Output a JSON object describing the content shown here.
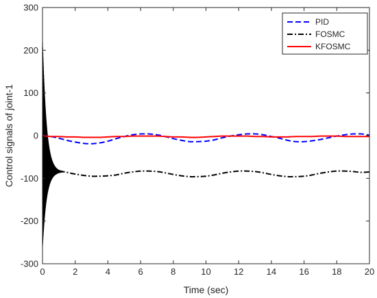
{
  "chart_data": {
    "type": "line",
    "title": "",
    "xlabel": "Time (sec)",
    "ylabel": "Control signals of joint-1",
    "xlim": [
      0,
      20
    ],
    "ylim": [
      -300,
      300
    ],
    "xticks": [
      "0",
      "2",
      "4",
      "6",
      "8",
      "10",
      "12",
      "14",
      "16",
      "18",
      "20"
    ],
    "yticks": [
      "300",
      "200",
      "100",
      "0",
      "-100",
      "-200",
      "-300"
    ],
    "grid": false,
    "legend_position": "top-right",
    "series": [
      {
        "name": "PID",
        "color": "#0000ff",
        "line_style": "dashed",
        "x": [
          0,
          0.5,
          1,
          1.5,
          2,
          2.5,
          3,
          3.5,
          4,
          4.5,
          5,
          5.5,
          6,
          6.5,
          7,
          7.5,
          8,
          8.5,
          9,
          9.5,
          10,
          10.5,
          11,
          11.5,
          12,
          12.5,
          13,
          13.5,
          14,
          14.5,
          15,
          15.5,
          16,
          16.5,
          17,
          17.5,
          18,
          18.5,
          19,
          19.5,
          20
        ],
        "y": [
          0,
          -2,
          -6,
          -11,
          -15,
          -18,
          -19,
          -17,
          -13,
          -7,
          -2,
          2,
          4,
          4,
          2,
          -2,
          -7,
          -11,
          -14,
          -14,
          -13,
          -10,
          -5,
          -1,
          2,
          4,
          4,
          2,
          -2,
          -6,
          -11,
          -14,
          -14,
          -12,
          -9,
          -5,
          -1,
          2,
          4,
          4,
          1
        ]
      },
      {
        "name": "FOSMC",
        "color": "#000000",
        "line_style": "dashdot",
        "x": [
          0,
          0.5,
          1,
          1.5,
          2,
          2.5,
          3,
          3.5,
          4,
          4.5,
          5,
          5.5,
          6,
          6.5,
          7,
          7.5,
          8,
          8.5,
          9,
          9.5,
          10,
          10.5,
          11,
          11.5,
          12,
          12.5,
          13,
          13.5,
          14,
          14.5,
          15,
          15.5,
          16,
          16.5,
          17,
          17.5,
          18,
          18.5,
          19,
          19.5,
          20
        ],
        "y": [
          0,
          -76,
          -82,
          -86,
          -90,
          -93,
          -95,
          -95,
          -94,
          -92,
          -88,
          -85,
          -83,
          -83,
          -84,
          -87,
          -91,
          -94,
          -96,
          -96,
          -95,
          -92,
          -88,
          -85,
          -83,
          -83,
          -84,
          -87,
          -91,
          -94,
          -96,
          -96,
          -95,
          -92,
          -88,
          -85,
          -83,
          -83,
          -84,
          -86,
          -85
        ]
      },
      {
        "name": "KFOSMC",
        "color": "#ff0000",
        "line_style": "solid",
        "x": [
          0,
          0.5,
          1,
          1.5,
          2,
          2.5,
          3,
          3.5,
          4,
          4.5,
          5,
          5.5,
          6,
          6.5,
          7,
          7.5,
          8,
          8.5,
          9,
          9.5,
          10,
          10.5,
          11,
          11.5,
          12,
          12.5,
          13,
          13.5,
          14,
          14.5,
          15,
          15.5,
          16,
          16.5,
          17,
          17.5,
          18,
          18.5,
          19,
          19.5,
          20
        ],
        "y": [
          0,
          -2,
          -2,
          -3,
          -3,
          -4,
          -4,
          -4,
          -3,
          -2,
          -2,
          -1,
          -1,
          -1,
          -1,
          -2,
          -3,
          -3,
          -4,
          -4,
          -3,
          -2,
          -1,
          -1,
          -1,
          -1,
          -2,
          -2,
          -3,
          -3,
          -3,
          -2,
          -2,
          -2,
          -1,
          -1,
          -1,
          -2,
          -2,
          -2,
          -2
        ]
      }
    ],
    "transient": {
      "series": "FOSMC",
      "x_end": 1.3,
      "peak_high": 232,
      "peak_low": -268,
      "settle_value": -85
    }
  }
}
